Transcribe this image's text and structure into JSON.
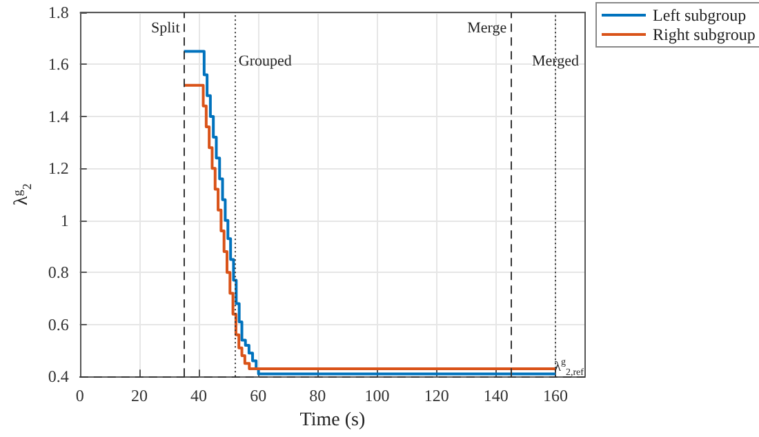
{
  "chart_data": {
    "type": "step",
    "xlabel": "Time (s)",
    "ylabel": "λ$^{g}$$_{2}$",
    "xlim": [
      0,
      170
    ],
    "xticks": [
      0,
      20,
      40,
      60,
      80,
      100,
      120,
      140,
      160
    ],
    "ylim": [
      0.4,
      1.8
    ],
    "yticks": [
      0.4,
      0.6,
      0.8,
      1,
      1.2,
      1.4,
      1.6,
      1.8
    ],
    "grid": true,
    "legend": "top right",
    "line_style": "solid",
    "marker": "none",
    "series": [
      {
        "name": "Left subgroup",
        "color": "#0072bd",
        "x": [
          35,
          41.8,
          42.8,
          43.9,
          44.9,
          45.9,
          47,
          48,
          48.9,
          49.8,
          50.7,
          51.7,
          52.6,
          53.6,
          54.5,
          55.7,
          56.9,
          58.1,
          59.3,
          60.1,
          160
        ],
        "values": [
          1.65,
          1.56,
          1.48,
          1.4,
          1.32,
          1.24,
          1.16,
          1.08,
          1,
          0.93,
          0.85,
          0.77,
          0.68,
          0.61,
          0.54,
          0.52,
          0.49,
          0.46,
          0.43,
          0.41,
          0.41
        ]
      },
      {
        "name": "Right subgroup",
        "color": "#d95319",
        "x": [
          35,
          41.5,
          42.5,
          43.5,
          44.5,
          45.5,
          46.5,
          47.5,
          48.5,
          49.5,
          50.5,
          51.5,
          52.5,
          53.5,
          54.5,
          55.5,
          57,
          160
        ],
        "values": [
          1.52,
          1.44,
          1.36,
          1.28,
          1.2,
          1.12,
          1.04,
          0.96,
          0.88,
          0.8,
          0.72,
          0.64,
          0.56,
          0.51,
          0.48,
          0.45,
          0.43,
          0.43
        ]
      }
    ],
    "ref_lines": [
      {
        "axis": "x",
        "value": 35,
        "label": "Split",
        "line_style": "dashed"
      },
      {
        "axis": "x",
        "value": 52,
        "label": "Grouped",
        "line_style": "dotted"
      },
      {
        "axis": "x",
        "value": 145,
        "label": "Merge",
        "line_style": "dashed"
      },
      {
        "axis": "x",
        "value": 160,
        "label": "Merged",
        "line_style": "dotted"
      },
      {
        "axis": "y",
        "value": 0.4,
        "label": "λ$^{g}$$_{2,ref}$",
        "line_style": "dashed"
      }
    ]
  }
}
